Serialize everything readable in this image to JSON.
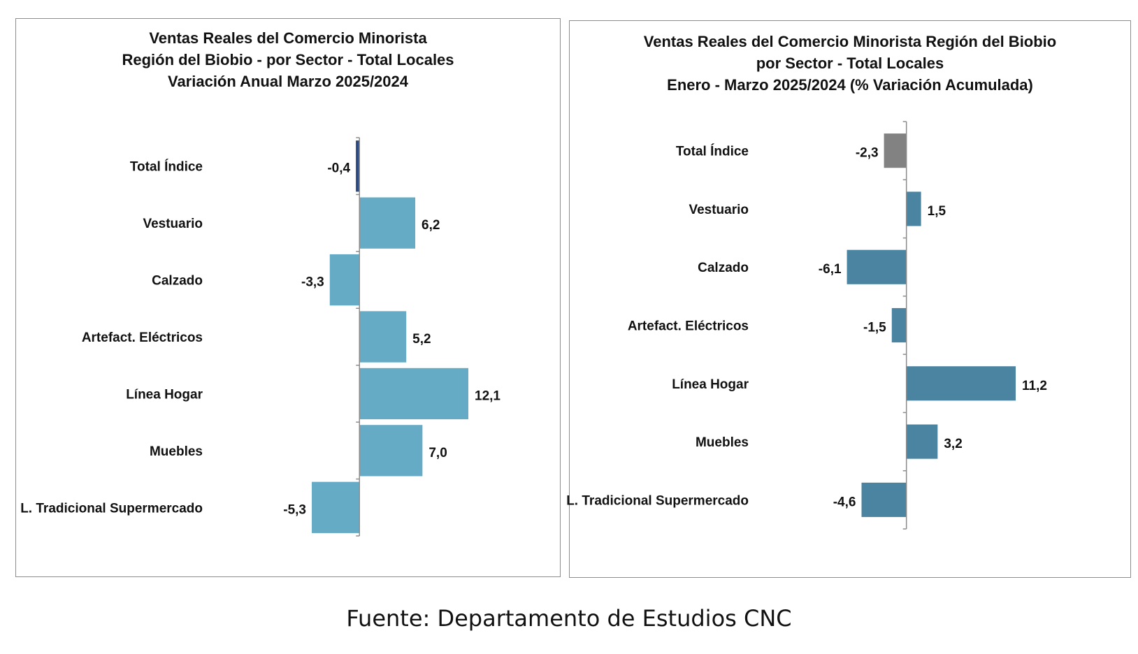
{
  "chart_data": [
    {
      "type": "bar",
      "orientation": "horizontal",
      "title_lines": [
        "Ventas Reales del Comercio Minorista",
        "Región del Biobio - por Sector - Total Locales",
        "Variación Anual  Marzo 2025/2024"
      ],
      "categories": [
        "Total Índice",
        "Vestuario",
        "Calzado",
        "Artefact. Eléctricos",
        "Línea Hogar",
        "Muebles",
        "L. Tradicional Supermercado"
      ],
      "values": [
        -0.4,
        6.2,
        -3.3,
        5.2,
        12.1,
        7.0,
        -5.3
      ],
      "value_labels": [
        "-0,4",
        "6,2",
        "-3,3",
        "5,2",
        "12,1",
        "7,0",
        "-5,3"
      ],
      "bar_colors": [
        "#2f4a7f",
        "#66abc6",
        "#66abc6",
        "#66abc6",
        "#66abc6",
        "#66abc6",
        "#66abc6"
      ],
      "xlim": [
        -6,
        12.1
      ],
      "grid": false,
      "legend": "none"
    },
    {
      "type": "bar",
      "orientation": "horizontal",
      "title_lines": [
        "Ventas Reales del Comercio Minorista Región del Biobio",
        "por Sector - Total Locales",
        "Enero  - Marzo 2025/2024  (% Variación Acumulada)"
      ],
      "categories": [
        "Total Índice",
        "Vestuario",
        "Calzado",
        "Artefact. Eléctricos",
        "Línea Hogar",
        "Muebles",
        "L. Tradicional Supermercado"
      ],
      "values": [
        -2.3,
        1.5,
        -6.1,
        -1.5,
        11.2,
        3.2,
        -4.6
      ],
      "value_labels": [
        "-2,3",
        "1,5",
        "-6,1",
        "-1,5",
        "11,2",
        "3,2",
        "-4,6"
      ],
      "bar_colors": [
        "#828282",
        "#4a84a0",
        "#4a84a0",
        "#4a84a0",
        "#4a84a0",
        "#4a84a0",
        "#4a84a0"
      ],
      "xlim": [
        -7,
        11.2
      ],
      "grid": false,
      "legend": "none"
    }
  ],
  "source_text": "Fuente: Departamento de Estudios CNC"
}
